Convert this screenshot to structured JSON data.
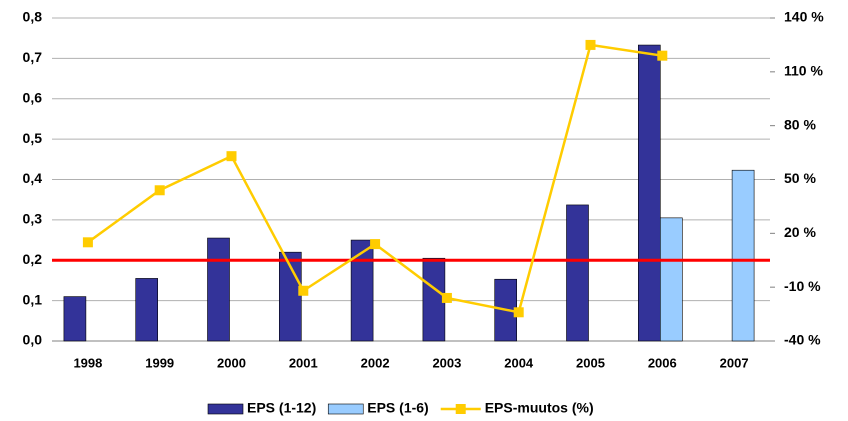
{
  "chart_data": {
    "type": "bar_line",
    "categories": [
      "1998",
      "1999",
      "2000",
      "2001",
      "2002",
      "2003",
      "2004",
      "2005",
      "2006",
      "2007"
    ],
    "series": [
      {
        "name": "EPS (1-12)",
        "type": "bar",
        "color": "#333399",
        "values": [
          0.11,
          0.155,
          0.255,
          0.22,
          0.25,
          0.205,
          0.153,
          0.337,
          0.733,
          null
        ]
      },
      {
        "name": "EPS (1-6)",
        "type": "bar",
        "color": "#99ccff",
        "values": [
          null,
          null,
          null,
          null,
          null,
          null,
          null,
          null,
          0.305,
          0.423
        ]
      },
      {
        "name": "EPS-muutos (%)",
        "type": "line",
        "axis": "y2",
        "color": "#ffcc00",
        "values": [
          15,
          44,
          63,
          -12,
          14,
          -16,
          -24,
          125,
          119,
          null
        ]
      }
    ],
    "ylim": [
      0,
      0.8
    ],
    "yticks": [
      {
        "value": 0,
        "label": "0,0"
      },
      {
        "value": 0.1,
        "label": "0,1"
      },
      {
        "value": 0.2,
        "label": "0,2"
      },
      {
        "value": 0.3,
        "label": "0,3"
      },
      {
        "value": 0.4,
        "label": "0,4"
      },
      {
        "value": 0.5,
        "label": "0,5"
      },
      {
        "value": 0.6,
        "label": "0,6"
      },
      {
        "value": 0.7,
        "label": "0,7"
      },
      {
        "value": 0.8,
        "label": "0,8"
      }
    ],
    "y2lim": [
      -40,
      140
    ],
    "y2ticks": [
      {
        "value": -40,
        "label": "-40 %"
      },
      {
        "value": -10,
        "label": "-10 %"
      },
      {
        "value": 20,
        "label": "20 %"
      },
      {
        "value": 50,
        "label": "50 %"
      },
      {
        "value": 80,
        "label": "80 %"
      },
      {
        "value": 110,
        "label": "110 %"
      },
      {
        "value": 140,
        "label": "140 %"
      }
    ],
    "grid": true,
    "reference_line": {
      "value": 0.2,
      "color": "#ff0000"
    },
    "legend": "bottom"
  }
}
